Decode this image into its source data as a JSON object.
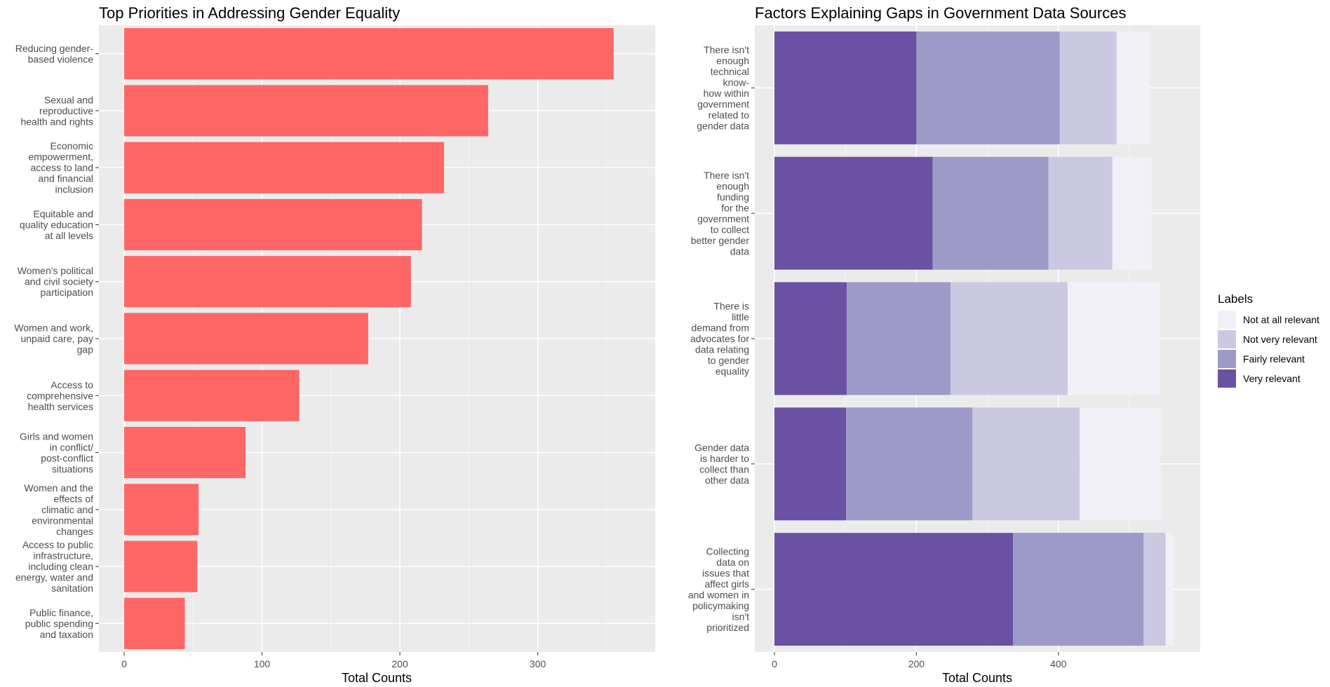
{
  "chart_data": [
    {
      "type": "bar",
      "orientation": "horizontal",
      "title": "Top Priorities in Addressing Gender Equality",
      "xlabel": "Total Counts",
      "ylabel": "",
      "xlim": [
        0,
        375
      ],
      "xticks": [
        0,
        100,
        200,
        300
      ],
      "grid": true,
      "bar_color": "#ff6666",
      "categories": [
        [
          "Reducing gender-",
          "based violence"
        ],
        [
          "Sexual and",
          "reproductive",
          "health and rights"
        ],
        [
          "Economic",
          "empowerment,",
          "access to land",
          "and financial",
          "inclusion"
        ],
        [
          "Equitable and",
          "quality education",
          "at all levels"
        ],
        [
          "Women's political",
          "and civil society",
          "participation"
        ],
        [
          "Women and work,",
          "unpaid care, pay",
          "gap"
        ],
        [
          "Access to",
          "comprehensive",
          "health services"
        ],
        [
          "Girls and women",
          "in conflict/",
          "post-conflict",
          "situations"
        ],
        [
          "Women and the",
          "effects of",
          "climatic and",
          "environmental",
          "changes"
        ],
        [
          "Access to public",
          "infrastructure,",
          "including clean",
          "energy, water and",
          "sanitation"
        ],
        [
          "Public finance,",
          "public spending",
          "and taxation"
        ]
      ],
      "values": [
        355,
        264,
        232,
        216,
        208,
        177,
        127,
        88,
        54,
        53,
        44
      ]
    },
    {
      "type": "bar",
      "orientation": "horizontal",
      "stacked": true,
      "title": "Factors Explaining Gaps in Government Data Sources",
      "xlabel": "Total Counts",
      "ylabel": "",
      "xlim": [
        0,
        580
      ],
      "xticks": [
        0,
        200,
        400
      ],
      "grid": true,
      "legend": {
        "title": "Labels",
        "position": "right"
      },
      "categories": [
        [
          "There isn't",
          "enough",
          "technical",
          "know-",
          "how within",
          "government",
          "related to",
          "gender data"
        ],
        [
          "There isn't",
          "enough",
          "funding",
          "for the",
          "government",
          "to collect",
          "better gender",
          "data"
        ],
        [
          "There is",
          "little",
          "demand from",
          "advocates for",
          "data relating",
          "to gender",
          "equality"
        ],
        [
          "Gender data",
          "is harder to",
          "collect than",
          "other data"
        ],
        [
          "Collecting",
          "data on",
          "issues that",
          "affect girls",
          "and women in",
          "policymaking",
          "isn't",
          "prioritized"
        ]
      ],
      "series": [
        {
          "name": "Very relevant",
          "color": "#6a51a3",
          "values": [
            200,
            223,
            102,
            101,
            336
          ]
        },
        {
          "name": "Fairly relevant",
          "color": "#9e9ac8",
          "values": [
            202,
            163,
            146,
            178,
            184
          ]
        },
        {
          "name": "Not very relevant",
          "color": "#cbc9e2",
          "values": [
            80,
            90,
            165,
            151,
            31
          ]
        },
        {
          "name": "Not at all relevant",
          "color": "#f2f0f7",
          "values": [
            46,
            55,
            130,
            114,
            11
          ]
        }
      ]
    }
  ]
}
